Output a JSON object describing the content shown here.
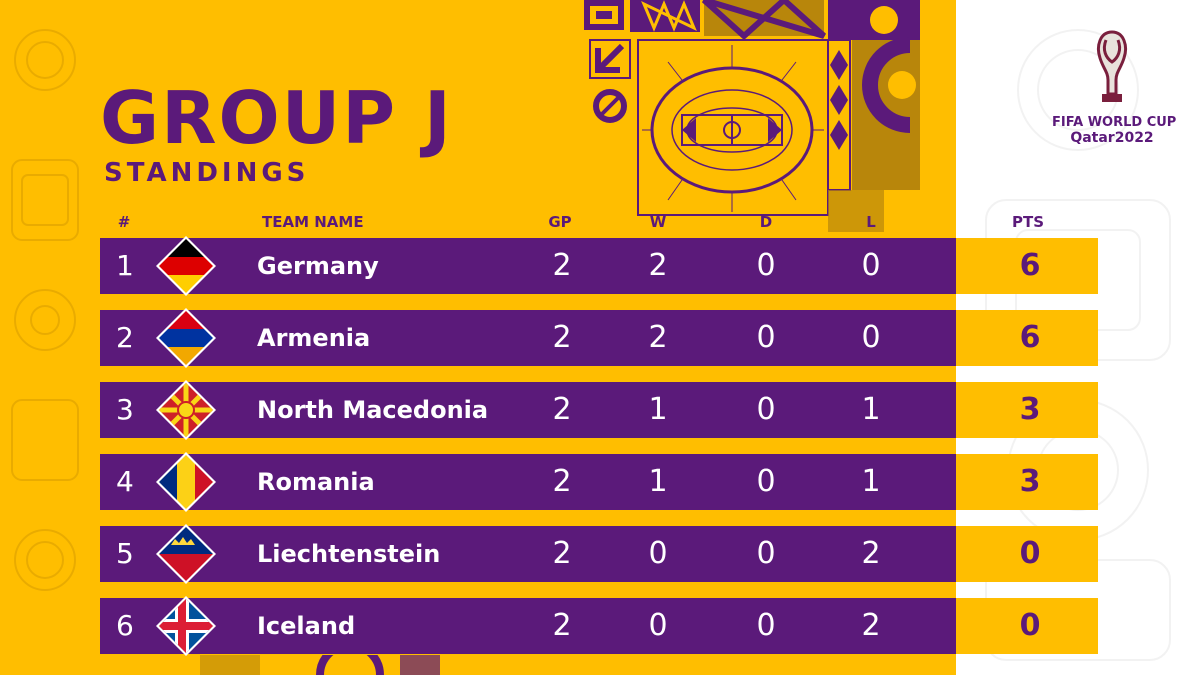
{
  "header": {
    "title": "GROUP J",
    "subtitle": "STANDINGS"
  },
  "logo": {
    "line1": "FIFA WORLD CUP",
    "line2": "Qatar2022"
  },
  "columns": {
    "rank": "#",
    "team": "TEAM NAME",
    "gp": "GP",
    "w": "W",
    "d": "D",
    "l": "L",
    "pts": "PTS"
  },
  "rows": [
    {
      "rank": "1",
      "team": "Germany",
      "gp": "2",
      "w": "2",
      "d": "0",
      "l": "0",
      "pts": "6"
    },
    {
      "rank": "2",
      "team": "Armenia",
      "gp": "2",
      "w": "2",
      "d": "0",
      "l": "0",
      "pts": "6"
    },
    {
      "rank": "3",
      "team": "North Macedonia",
      "gp": "2",
      "w": "1",
      "d": "0",
      "l": "1",
      "pts": "3"
    },
    {
      "rank": "4",
      "team": "Romania",
      "gp": "2",
      "w": "1",
      "d": "0",
      "l": "1",
      "pts": "3"
    },
    {
      "rank": "5",
      "team": "Liechtenstein",
      "gp": "2",
      "w": "0",
      "d": "0",
      "l": "2",
      "pts": "0"
    },
    {
      "rank": "6",
      "team": "Iceland",
      "gp": "2",
      "w": "0",
      "d": "0",
      "l": "2",
      "pts": "0"
    }
  ],
  "colors": {
    "purple": "#5B1A7A",
    "yellow": "#FFBE00",
    "white": "#FFFFFF"
  },
  "icons": {
    "flags": [
      "germany-flag-icon",
      "armenia-flag-icon",
      "north-macedonia-flag-icon",
      "romania-flag-icon",
      "liechtenstein-flag-icon",
      "iceland-flag-icon"
    ]
  }
}
